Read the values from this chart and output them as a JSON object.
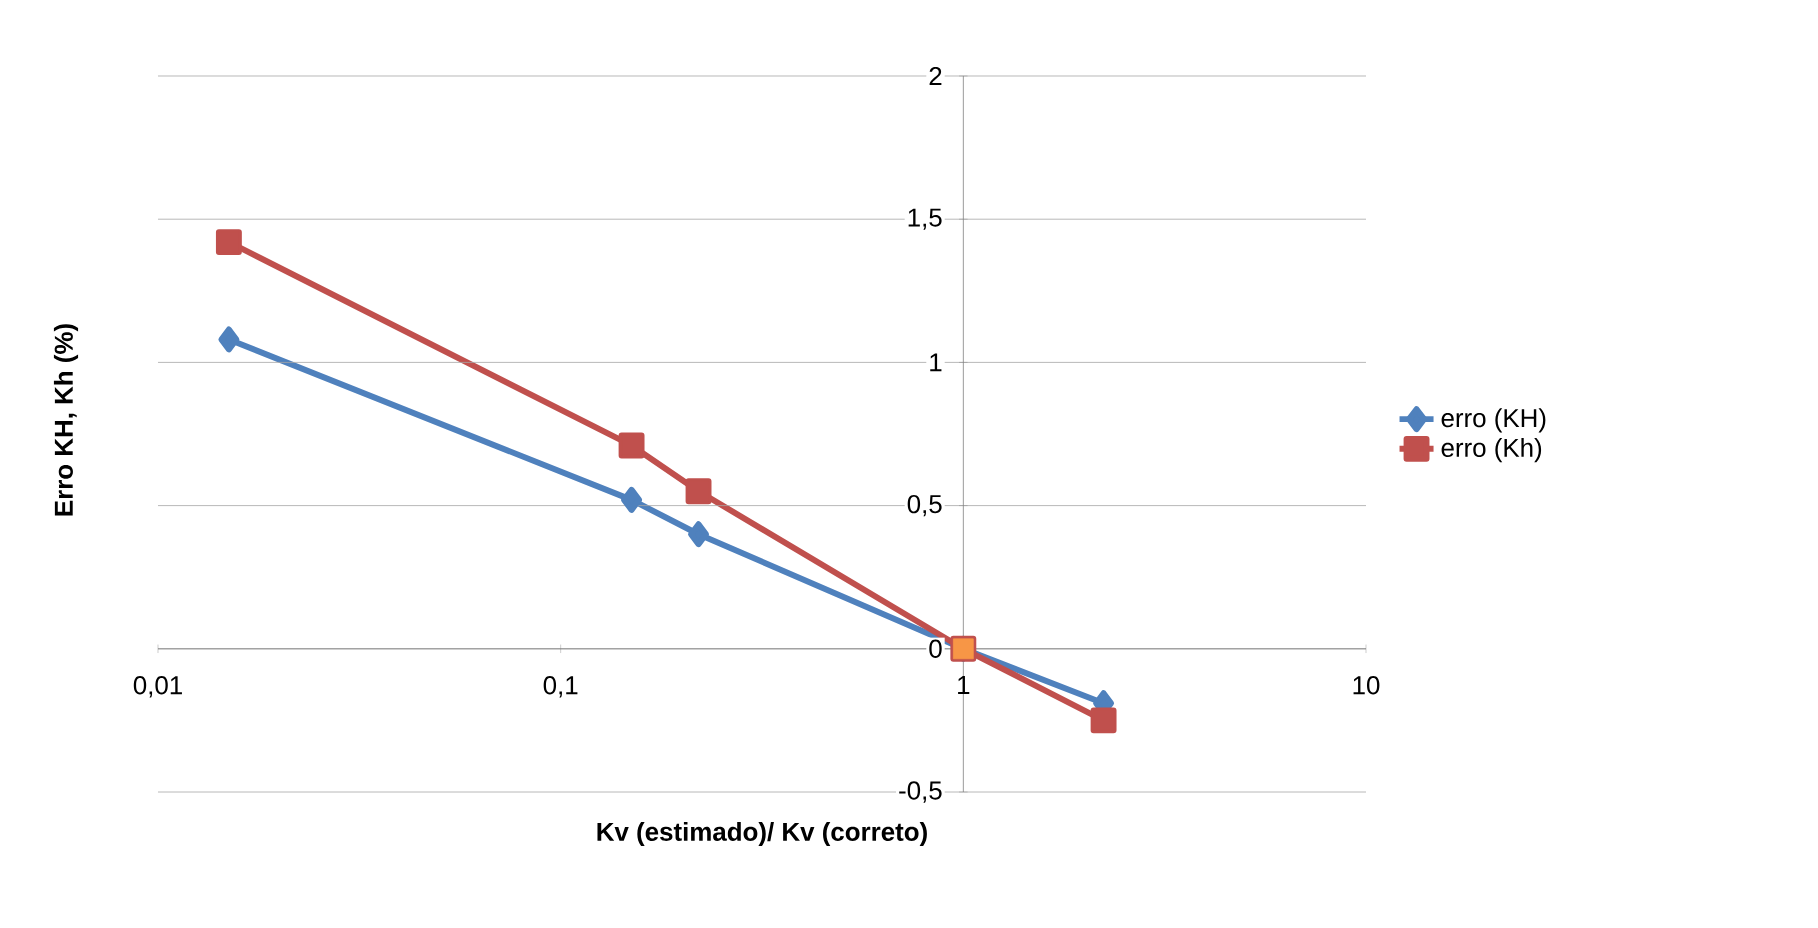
{
  "chart_data": {
    "type": "line",
    "xlabel": "Kv (estimado)/ Kv (correto)",
    "ylabel": "Erro KH, Kh (%)",
    "log": "x",
    "grid": "y",
    "legend": "right",
    "xlim": [
      0.01,
      10
    ],
    "xticks": [
      {
        "value": 0.01,
        "label": "0,01"
      },
      {
        "value": 0.1,
        "label": "0,1"
      },
      1,
      10
    ],
    "ylim": [
      -0.5,
      2
    ],
    "yticks": [
      {
        "value": -0.5,
        "label": "-0,5"
      },
      0,
      {
        "value": 0.5,
        "label": "0,5"
      },
      1,
      {
        "value": 1.5,
        "label": "1,5"
      },
      2
    ],
    "series": [
      {
        "name": "erro (KH)",
        "color": "#4f81bd",
        "marker": "diamond",
        "x": [
          0.015,
          0.15,
          0.22,
          1,
          2.23
        ],
        "values": [
          1.08,
          0.52,
          0.4,
          0,
          -0.19
        ]
      },
      {
        "name": "erro (Kh)",
        "color": "#c0504d",
        "marker": "square",
        "colors": [
          "#c0504d",
          "#c0504d",
          "#c0504d",
          "#f79646",
          "#c0504d"
        ],
        "x": [
          0.015,
          0.15,
          0.22,
          1,
          2.23
        ],
        "values": [
          1.42,
          0.71,
          0.55,
          0,
          -0.25
        ]
      }
    ]
  }
}
